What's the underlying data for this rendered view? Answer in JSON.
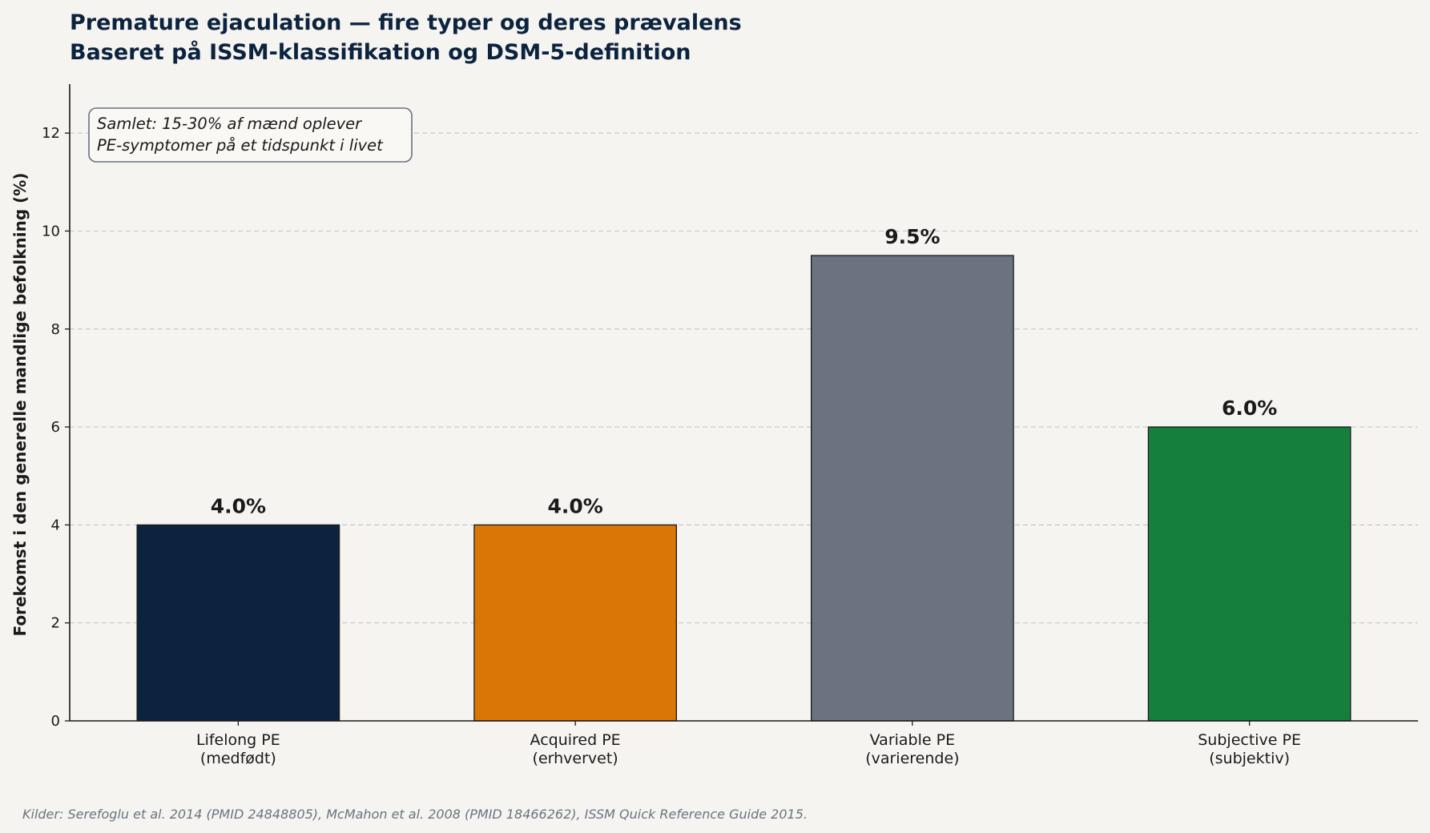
{
  "chart_data": {
    "type": "bar",
    "title_lines": [
      "Premature ejaculation — fire typer og deres prævalens",
      "Baseret på ISSM-klassifikation og DSM-5-definition"
    ],
    "ylabel": "Forekomst i den generelle mandlige befolkning (%)",
    "xlabel": "",
    "ylim": [
      0,
      13
    ],
    "yticks": [
      0,
      2,
      4,
      6,
      8,
      10,
      12
    ],
    "grid": "horizontal-dashed",
    "categories": [
      [
        "Lifelong PE",
        "(medfødt)"
      ],
      [
        "Acquired PE",
        "(erhvervet)"
      ],
      [
        "Variable PE",
        "(varierende)"
      ],
      [
        "Subjective PE",
        "(subjektiv)"
      ]
    ],
    "values": [
      4.0,
      4.0,
      9.5,
      6.0
    ],
    "value_labels": [
      "4.0%",
      "4.0%",
      "9.5%",
      "6.0%"
    ],
    "colors": [
      "#0c233f",
      "#d97706",
      "#6b7280",
      "#15803d"
    ],
    "annotation_lines": [
      "Samlet: 15-30% af mænd oplever",
      "PE-symptomer på et tidspunkt i livet"
    ],
    "source": "Kilder: Serefoglu et al. 2014 (PMID 24848805), McMahon et al. 2008 (PMID 18466262), ISSM Quick Reference Guide 2015."
  }
}
